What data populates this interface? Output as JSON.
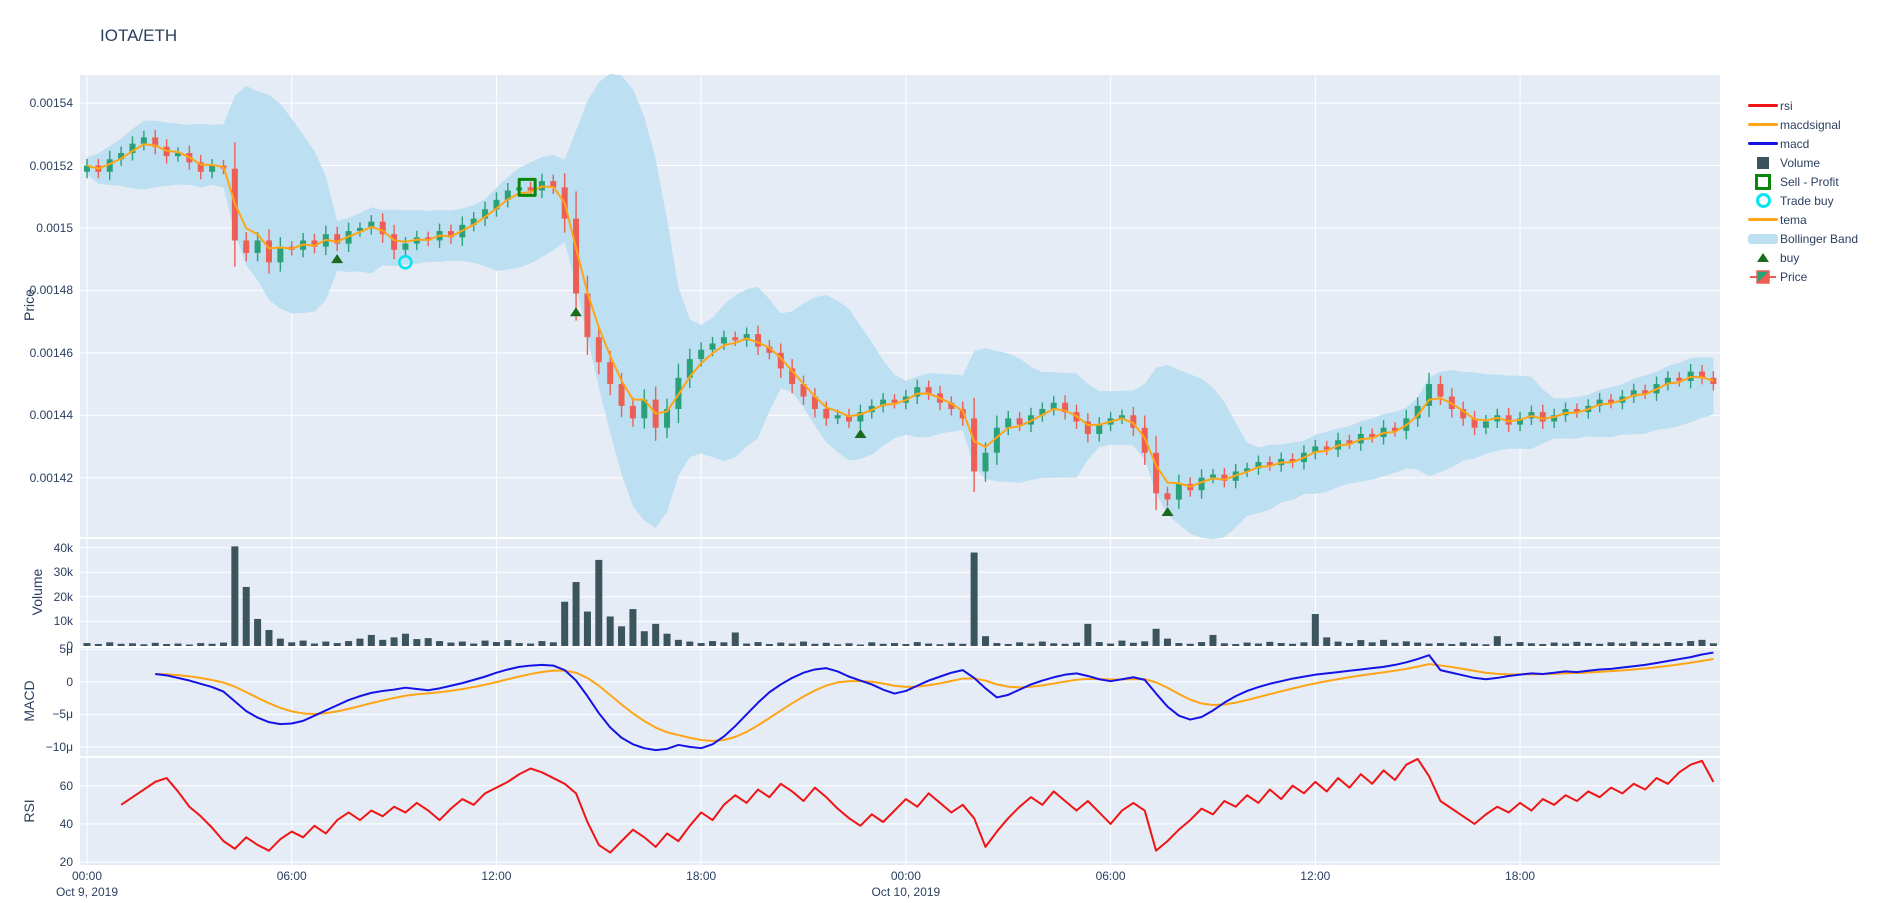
{
  "title": "IOTA/ETH",
  "colors": {
    "paper_bg": "#ffffff",
    "plot_bg": "#E5ECF6",
    "grid": "#ffffff",
    "text": "#2a3f5f",
    "candle_up": "#2aa178",
    "candle_down": "#ec5f55",
    "bollinger": "#bddff2",
    "tema": "#ffa515",
    "volume_bar": "#3c545c",
    "macd": "#1512e6",
    "macdsignal": "#ffa515",
    "rsi": "#f01414",
    "sell_profit": "#0a870a",
    "trade_buy": "#00e5f0",
    "buy": "#1a6b1e"
  },
  "legend": {
    "items": [
      {
        "name": "rsi",
        "label": "rsi",
        "symbol": "line",
        "color": "#f01414"
      },
      {
        "name": "macdsignal",
        "label": "macdsignal",
        "symbol": "line",
        "color": "#ffa515"
      },
      {
        "name": "macd",
        "label": "macd",
        "symbol": "line",
        "color": "#1512e6"
      },
      {
        "name": "volume",
        "label": "Volume",
        "symbol": "square",
        "color": "#3c545c"
      },
      {
        "name": "sell-profit",
        "label": "Sell - Profit",
        "symbol": "open-square",
        "color": "#0a870a"
      },
      {
        "name": "trade-buy",
        "label": "Trade buy",
        "symbol": "open-circle",
        "color": "#00e5f0"
      },
      {
        "name": "tema",
        "label": "tema",
        "symbol": "line",
        "color": "#ffa515"
      },
      {
        "name": "bollinger-band",
        "label": "Bollinger Band",
        "symbol": "thick-line",
        "color": "#bddff2"
      },
      {
        "name": "buy",
        "label": "buy",
        "symbol": "triangle",
        "color": "#1a6b1e"
      },
      {
        "name": "price",
        "label": "Price",
        "symbol": "candle",
        "color": "#2aa178"
      }
    ]
  },
  "axes": {
    "price": {
      "title": "Price",
      "tick_labels": [
        "0.00154",
        "0.00152",
        "0.0015",
        "0.00148",
        "0.00146",
        "0.00144",
        "0.00142"
      ],
      "tick_values": [
        154,
        152,
        150,
        148,
        146,
        144,
        142
      ]
    },
    "volume": {
      "title": "Volume",
      "tick_labels": [
        "40k",
        "30k",
        "20k",
        "10k",
        "0"
      ],
      "tick_values": [
        40,
        30,
        20,
        10,
        0
      ]
    },
    "macd": {
      "title": "MACD",
      "tick_labels": [
        "5μ",
        "0",
        "−5μ",
        "−10μ"
      ],
      "tick_values": [
        5,
        0,
        -5,
        -10
      ]
    },
    "rsi": {
      "title": "RSI",
      "tick_labels": [
        "60",
        "40",
        "20"
      ],
      "tick_values": [
        60,
        40,
        20
      ]
    },
    "x": {
      "tick_labels": [
        "00:00",
        "06:00",
        "12:00",
        "18:00",
        "00:00",
        "06:00",
        "12:00",
        "18:00"
      ],
      "tick_hours": [
        0,
        6,
        12,
        18,
        24,
        30,
        36,
        42
      ],
      "date_labels": [
        {
          "label": "Oct 9, 2019",
          "hour": 0
        },
        {
          "label": "Oct 10, 2019",
          "hour": 24
        }
      ]
    }
  },
  "chart_data": {
    "type": "candlestick",
    "title": "IOTA/ETH",
    "x_start": "Oct 9, 2019 00:00",
    "step_minutes": 20,
    "panels": [
      "Price",
      "Volume",
      "MACD",
      "RSI"
    ],
    "price_ylim_1e5": [
      140.1,
      154.9
    ],
    "close_1e5": [
      152.0,
      151.8,
      152.2,
      152.4,
      152.7,
      152.9,
      152.6,
      152.3,
      152.4,
      152.1,
      151.8,
      152.0,
      151.9,
      149.6,
      149.2,
      149.6,
      148.9,
      149.4,
      149.3,
      149.6,
      149.4,
      149.8,
      149.5,
      149.9,
      150.0,
      150.2,
      149.8,
      149.3,
      149.5,
      149.7,
      149.6,
      149.9,
      149.7,
      150.1,
      150.3,
      150.6,
      150.9,
      151.2,
      151.3,
      151.2,
      151.5,
      151.3,
      150.3,
      147.9,
      146.5,
      145.7,
      145.0,
      144.3,
      143.9,
      144.5,
      143.6,
      144.2,
      145.2,
      145.8,
      146.1,
      146.3,
      146.5,
      146.4,
      146.6,
      146.2,
      146.0,
      145.5,
      145.0,
      144.6,
      144.2,
      143.9,
      144.0,
      143.8,
      144.1,
      144.3,
      144.5,
      144.4,
      144.6,
      144.9,
      144.7,
      144.4,
      144.2,
      143.9,
      142.2,
      142.8,
      143.6,
      143.9,
      143.7,
      144.0,
      144.2,
      144.4,
      144.1,
      143.8,
      143.4,
      143.7,
      143.9,
      144.0,
      143.6,
      142.8,
      141.5,
      141.3,
      141.8,
      141.6,
      142.0,
      142.1,
      141.9,
      142.2,
      142.3,
      142.5,
      142.4,
      142.6,
      142.5,
      142.8,
      143.0,
      142.9,
      143.2,
      143.1,
      143.4,
      143.3,
      143.6,
      143.5,
      143.9,
      144.3,
      145.0,
      144.6,
      144.2,
      143.9,
      143.6,
      143.8,
      144.0,
      143.7,
      143.9,
      144.1,
      143.8,
      144.0,
      144.2,
      144.1,
      144.3,
      144.5,
      144.4,
      144.6,
      144.8,
      144.7,
      145.0,
      145.2,
      145.1,
      145.4,
      145.2,
      145.0
    ],
    "open_rule": "previous close",
    "volume_k": [
      1.2,
      0.8,
      1.5,
      0.9,
      1.1,
      0.7,
      1.3,
      0.8,
      1.0,
      0.6,
      1.2,
      0.9,
      1.4,
      40.5,
      24,
      11,
      6.5,
      3,
      1.5,
      2.2,
      1.0,
      1.8,
      1.2,
      2.0,
      3,
      4.5,
      2.5,
      3.5,
      5,
      2.8,
      3.2,
      2,
      1.4,
      1.8,
      1.0,
      2.2,
      1.6,
      2.4,
      1.2,
      1.0,
      2.0,
      1.5,
      18,
      26,
      14,
      35,
      12,
      8,
      15,
      6,
      9,
      5,
      2.5,
      1.8,
      1.2,
      2.0,
      1.5,
      5.5,
      1.0,
      1.6,
      0.8,
      1.4,
      1.0,
      1.8,
      0.9,
      1.3,
      0.7,
      1.1,
      0.6,
      1.5,
      0.9,
      1.2,
      0.8,
      1.6,
      1.0,
      0.7,
      1.3,
      0.9,
      38,
      4,
      1.2,
      0.8,
      1.5,
      1.0,
      1.8,
      1.1,
      0.9,
      1.4,
      9,
      1.6,
      1.0,
      2.2,
      1.3,
      1.9,
      7,
      3,
      1.2,
      0.9,
      1.6,
      4.5,
      1.1,
      0.8,
      1.4,
      1.0,
      1.7,
      1.2,
      0.9,
      1.5,
      13,
      3.5,
      1.8,
      1.2,
      2.4,
      1.5,
      2.5,
      1.3,
      1.9,
      1.4,
      1.0,
      1.2,
      0.8,
      1.5,
      1.0,
      0.7,
      4,
      0.9,
      1.6,
      1.1,
      0.8,
      1.4,
      1.0,
      1.7,
      1.2,
      0.9,
      1.5,
      1.1,
      1.8,
      1.3,
      1.0,
      1.6,
      1.2,
      2.0,
      2.5,
      1.1
    ],
    "volume_ylim_k": [
      0,
      43.5
    ],
    "macd_micro": {
      "start_index": 6,
      "values": [
        1.2,
        1.0,
        0.6,
        0.2,
        -0.3,
        -0.8,
        -1.5,
        -3.0,
        -4.5,
        -5.5,
        -6.2,
        -6.5,
        -6.4,
        -6.0,
        -5.2,
        -4.4,
        -3.6,
        -2.8,
        -2.2,
        -1.7,
        -1.4,
        -1.2,
        -0.9,
        -1.1,
        -1.3,
        -1.0,
        -0.6,
        -0.2,
        0.3,
        0.8,
        1.4,
        1.9,
        2.3,
        2.5,
        2.6,
        2.5,
        1.8,
        0.2,
        -2.2,
        -4.8,
        -7.0,
        -8.6,
        -9.6,
        -10.2,
        -10.5,
        -10.3,
        -9.7,
        -10.0,
        -10.2,
        -9.6,
        -8.4,
        -6.8,
        -5.0,
        -3.2,
        -1.6,
        -0.4,
        0.6,
        1.4,
        1.9,
        2.1,
        1.6,
        0.8,
        0.2,
        -0.4,
        -1.2,
        -1.8,
        -1.4,
        -0.6,
        0.2,
        0.8,
        1.4,
        1.8,
        0.6,
        -1.0,
        -2.4,
        -2.0,
        -1.2,
        -0.4,
        0.2,
        0.7,
        1.1,
        1.3,
        0.9,
        0.4,
        0.1,
        0.4,
        0.7,
        0.3,
        -1.8,
        -3.8,
        -5.2,
        -5.8,
        -5.4,
        -4.4,
        -3.2,
        -2.2,
        -1.4,
        -0.8,
        -0.3,
        0.1,
        0.5,
        0.8,
        1.1,
        1.3,
        1.5,
        1.7,
        1.9,
        2.1,
        2.3,
        2.6,
        3.0,
        3.5,
        4.1,
        1.8,
        1.4,
        1.0,
        0.6,
        0.4,
        0.6,
        0.9,
        1.1,
        1.3,
        1.2,
        1.4,
        1.6,
        1.5,
        1.7,
        1.9,
        2.0,
        2.2,
        2.4,
        2.6,
        2.9,
        3.2,
        3.5,
        3.8,
        4.2,
        4.5
      ]
    },
    "macd_ylim_micro": [
      -11.4,
      5.2
    ],
    "macdsignal_rule": "EMA(8) of macd",
    "tema_rule": "EMA(3) of close",
    "bollinger_rule": {
      "window": 10,
      "stddev_mult": 2.2
    },
    "rsi": {
      "start_index": 3,
      "ylim": [
        18.5,
        74.5
      ],
      "values": [
        50,
        54,
        58,
        62,
        64,
        57,
        49,
        44,
        38,
        31,
        27,
        33,
        29,
        26,
        32,
        36,
        33,
        39,
        35,
        42,
        46,
        42,
        47,
        44,
        49,
        46,
        51,
        47,
        42,
        48,
        53,
        50,
        56,
        59,
        62,
        66,
        69,
        67,
        64,
        61,
        56,
        41,
        29,
        25,
        31,
        37,
        33,
        28,
        35,
        31,
        39,
        46,
        42,
        50,
        55,
        51,
        58,
        54,
        61,
        57,
        52,
        59,
        54,
        48,
        43,
        39,
        45,
        41,
        47,
        53,
        49,
        56,
        51,
        46,
        50,
        43,
        28,
        36,
        43,
        49,
        54,
        50,
        57,
        52,
        47,
        52,
        46,
        40,
        47,
        51,
        47,
        26,
        31,
        37,
        42,
        48,
        45,
        52,
        49,
        55,
        51,
        58,
        53,
        60,
        56,
        62,
        57,
        64,
        59,
        66,
        61,
        68,
        63,
        71,
        74,
        65,
        52,
        48,
        44,
        40,
        45,
        49,
        46,
        51,
        47,
        53,
        50,
        55,
        52,
        57,
        54,
        59,
        56,
        61,
        58,
        64,
        61,
        67,
        71,
        73,
        62
      ]
    },
    "markers": {
      "sell_profit": [
        {
          "hour": 12.9,
          "price_1e5": 151.3
        }
      ],
      "trade_buy": [
        {
          "hour": 9.33,
          "price_1e5": 148.9
        }
      ],
      "buy": [
        {
          "hour": 7.33,
          "price_1e5": 149.0
        },
        {
          "hour": 14.33,
          "price_1e5": 147.3
        },
        {
          "hour": 22.67,
          "price_1e5": 143.4
        },
        {
          "hour": 31.67,
          "price_1e5": 140.9
        }
      ]
    }
  }
}
